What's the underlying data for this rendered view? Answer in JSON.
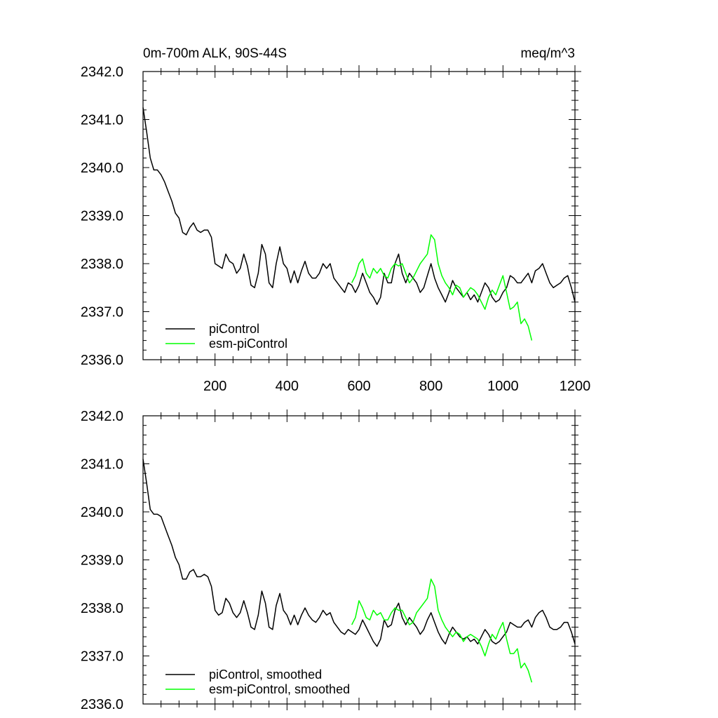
{
  "chart_data": [
    {
      "type": "line",
      "title_left": "0m-700m ALK, 90S-44S",
      "title_right": "meq/m^3",
      "xlim": [
        0,
        1200
      ],
      "ylim": [
        2336.0,
        2342.0
      ],
      "x_ticks": [
        200,
        400,
        600,
        800,
        1000,
        1200
      ],
      "x_tick_labels": [
        "200",
        "400",
        "600",
        "800",
        "1000",
        "1200"
      ],
      "y_ticks": [
        2336.0,
        2337.0,
        2338.0,
        2339.0,
        2340.0,
        2341.0,
        2342.0
      ],
      "y_tick_labels": [
        "2336.0",
        "2337.0",
        "2338.0",
        "2339.0",
        "2340.0",
        "2341.0",
        "2342.0"
      ],
      "legend_position": "bottom-left",
      "series": [
        {
          "name": "piControl",
          "color": "#000000",
          "x": [
            0,
            10,
            20,
            30,
            40,
            50,
            60,
            70,
            80,
            90,
            100,
            110,
            120,
            130,
            140,
            150,
            160,
            170,
            180,
            190,
            200,
            210,
            220,
            230,
            240,
            250,
            260,
            270,
            280,
            290,
            300,
            310,
            320,
            330,
            340,
            350,
            360,
            370,
            380,
            390,
            400,
            410,
            420,
            430,
            440,
            450,
            460,
            470,
            480,
            490,
            500,
            510,
            520,
            530,
            540,
            550,
            560,
            570,
            580,
            590,
            600,
            610,
            620,
            630,
            640,
            650,
            660,
            670,
            680,
            690,
            700,
            710,
            720,
            730,
            740,
            750,
            760,
            770,
            780,
            790,
            800,
            810,
            820,
            830,
            840,
            850,
            860,
            870,
            880,
            890,
            900,
            910,
            920,
            930,
            940,
            950,
            960,
            970,
            980,
            990,
            1000,
            1010,
            1020,
            1030,
            1040,
            1050,
            1060,
            1070,
            1080,
            1090,
            1100,
            1110,
            1120,
            1130,
            1140,
            1150,
            1160,
            1170,
            1180,
            1190,
            1200
          ],
          "y": [
            2341.25,
            2340.75,
            2340.2,
            2339.95,
            2339.95,
            2339.85,
            2339.7,
            2339.5,
            2339.3,
            2339.05,
            2338.95,
            2338.65,
            2338.6,
            2338.75,
            2338.85,
            2338.7,
            2338.65,
            2338.7,
            2338.7,
            2338.55,
            2338.0,
            2337.95,
            2337.9,
            2338.2,
            2338.05,
            2338.0,
            2337.8,
            2337.9,
            2338.2,
            2337.95,
            2337.55,
            2337.5,
            2337.8,
            2338.4,
            2338.2,
            2337.6,
            2337.5,
            2338.0,
            2338.35,
            2338.0,
            2337.9,
            2337.6,
            2337.85,
            2337.6,
            2337.85,
            2338.05,
            2337.8,
            2337.7,
            2337.7,
            2337.8,
            2338.0,
            2337.9,
            2338.0,
            2337.7,
            2337.6,
            2337.5,
            2337.4,
            2337.6,
            2337.55,
            2337.4,
            2337.55,
            2337.8,
            2337.6,
            2337.4,
            2337.3,
            2337.15,
            2337.3,
            2337.8,
            2337.6,
            2337.6,
            2338.0,
            2338.2,
            2337.8,
            2337.6,
            2337.8,
            2337.7,
            2337.6,
            2337.4,
            2337.5,
            2337.75,
            2338.0,
            2337.7,
            2337.5,
            2337.35,
            2337.2,
            2337.4,
            2337.65,
            2337.5,
            2337.4,
            2337.3,
            2337.4,
            2337.25,
            2337.35,
            2337.2,
            2337.4,
            2337.6,
            2337.5,
            2337.3,
            2337.2,
            2337.25,
            2337.4,
            2337.5,
            2337.75,
            2337.7,
            2337.6,
            2337.6,
            2337.7,
            2337.8,
            2337.6,
            2337.85,
            2337.9,
            2338.0,
            2337.8,
            2337.6,
            2337.5,
            2337.55,
            2337.6,
            2337.7,
            2337.75,
            2337.5,
            2337.2
          ]
        },
        {
          "name": "esm-piControl",
          "color": "#00ff00",
          "x": [
            580,
            590,
            600,
            610,
            620,
            630,
            640,
            650,
            660,
            670,
            680,
            690,
            700,
            710,
            720,
            730,
            740,
            750,
            760,
            770,
            780,
            790,
            800,
            810,
            820,
            830,
            840,
            850,
            860,
            870,
            880,
            890,
            900,
            910,
            920,
            930,
            940,
            950,
            960,
            970,
            980,
            990,
            1000,
            1010,
            1020,
            1030,
            1040,
            1050,
            1060,
            1070,
            1080
          ],
          "y": [
            2337.6,
            2337.75,
            2338.0,
            2338.1,
            2337.8,
            2337.7,
            2337.9,
            2337.8,
            2337.9,
            2337.75,
            2337.7,
            2337.9,
            2338.0,
            2337.95,
            2338.0,
            2337.8,
            2337.6,
            2337.7,
            2337.85,
            2338.0,
            2338.1,
            2338.2,
            2338.6,
            2338.5,
            2338.0,
            2337.75,
            2337.6,
            2337.5,
            2337.35,
            2337.55,
            2337.5,
            2337.3,
            2337.4,
            2337.5,
            2337.45,
            2337.35,
            2337.2,
            2337.05,
            2337.3,
            2337.45,
            2337.35,
            2337.55,
            2337.75,
            2337.4,
            2337.05,
            2337.1,
            2337.2,
            2336.75,
            2336.85,
            2336.7,
            2336.4
          ]
        }
      ]
    },
    {
      "type": "line",
      "xlim": [
        0,
        1200
      ],
      "ylim": [
        2336.0,
        2342.0
      ],
      "y_ticks": [
        2336.0,
        2337.0,
        2338.0,
        2339.0,
        2340.0,
        2341.0,
        2342.0
      ],
      "y_tick_labels": [
        "2336.0",
        "2337.0",
        "2338.0",
        "2339.0",
        "2340.0",
        "2341.0",
        "2342.0"
      ],
      "legend_position": "bottom-left",
      "series": [
        {
          "name": "piControl, smoothed",
          "color": "#000000",
          "x": [
            0,
            10,
            20,
            30,
            40,
            50,
            60,
            70,
            80,
            90,
            100,
            110,
            120,
            130,
            140,
            150,
            160,
            170,
            180,
            190,
            200,
            210,
            220,
            230,
            240,
            250,
            260,
            270,
            280,
            290,
            300,
            310,
            320,
            330,
            340,
            350,
            360,
            370,
            380,
            390,
            400,
            410,
            420,
            430,
            440,
            450,
            460,
            470,
            480,
            490,
            500,
            510,
            520,
            530,
            540,
            550,
            560,
            570,
            580,
            590,
            600,
            610,
            620,
            630,
            640,
            650,
            660,
            670,
            680,
            690,
            700,
            710,
            720,
            730,
            740,
            750,
            760,
            770,
            780,
            790,
            800,
            810,
            820,
            830,
            840,
            850,
            860,
            870,
            880,
            890,
            900,
            910,
            920,
            930,
            940,
            950,
            960,
            970,
            980,
            990,
            1000,
            1010,
            1020,
            1030,
            1040,
            1050,
            1060,
            1070,
            1080,
            1090,
            1100,
            1110,
            1120,
            1130,
            1140,
            1150,
            1160,
            1170,
            1180,
            1190,
            1200
          ],
          "y": [
            2341.1,
            2340.6,
            2340.05,
            2339.95,
            2339.95,
            2339.9,
            2339.7,
            2339.5,
            2339.3,
            2339.05,
            2338.9,
            2338.6,
            2338.6,
            2338.75,
            2338.8,
            2338.65,
            2338.65,
            2338.7,
            2338.65,
            2338.45,
            2337.95,
            2337.85,
            2337.9,
            2338.2,
            2338.1,
            2337.9,
            2337.8,
            2337.9,
            2338.15,
            2337.9,
            2337.6,
            2337.55,
            2337.85,
            2338.35,
            2338.1,
            2337.6,
            2337.55,
            2338.05,
            2338.3,
            2337.95,
            2337.85,
            2337.65,
            2337.85,
            2337.65,
            2337.85,
            2338.0,
            2337.85,
            2337.75,
            2337.7,
            2337.8,
            2337.95,
            2337.85,
            2337.9,
            2337.7,
            2337.6,
            2337.5,
            2337.45,
            2337.55,
            2337.5,
            2337.45,
            2337.55,
            2337.75,
            2337.6,
            2337.45,
            2337.3,
            2337.2,
            2337.35,
            2337.75,
            2337.6,
            2337.65,
            2337.95,
            2338.1,
            2337.8,
            2337.65,
            2337.8,
            2337.7,
            2337.6,
            2337.45,
            2337.55,
            2337.75,
            2337.9,
            2337.7,
            2337.5,
            2337.35,
            2337.25,
            2337.45,
            2337.6,
            2337.5,
            2337.4,
            2337.35,
            2337.4,
            2337.3,
            2337.35,
            2337.25,
            2337.4,
            2337.55,
            2337.45,
            2337.3,
            2337.25,
            2337.3,
            2337.4,
            2337.5,
            2337.7,
            2337.65,
            2337.6,
            2337.6,
            2337.7,
            2337.75,
            2337.6,
            2337.8,
            2337.9,
            2337.95,
            2337.8,
            2337.6,
            2337.55,
            2337.55,
            2337.6,
            2337.7,
            2337.7,
            2337.5,
            2337.25
          ]
        },
        {
          "name": "esm-piControl, smoothed",
          "color": "#00ff00",
          "x": [
            580,
            590,
            600,
            610,
            620,
            630,
            640,
            650,
            660,
            670,
            680,
            690,
            700,
            710,
            720,
            730,
            740,
            750,
            760,
            770,
            780,
            790,
            800,
            810,
            820,
            830,
            840,
            850,
            860,
            870,
            880,
            890,
            900,
            910,
            920,
            930,
            940,
            950,
            960,
            970,
            980,
            990,
            1000,
            1010,
            1020,
            1030,
            1040,
            1050,
            1060,
            1070,
            1080
          ],
          "y": [
            2337.65,
            2337.8,
            2338.15,
            2338.0,
            2337.8,
            2337.75,
            2337.95,
            2337.85,
            2337.9,
            2337.75,
            2337.75,
            2337.9,
            2338.0,
            2337.95,
            2337.95,
            2337.8,
            2337.65,
            2337.7,
            2337.9,
            2338.0,
            2338.1,
            2338.2,
            2338.6,
            2338.45,
            2337.95,
            2337.75,
            2337.6,
            2337.5,
            2337.4,
            2337.5,
            2337.45,
            2337.3,
            2337.4,
            2337.45,
            2337.4,
            2337.35,
            2337.2,
            2337.0,
            2337.25,
            2337.45,
            2337.35,
            2337.55,
            2337.7,
            2337.35,
            2337.05,
            2337.05,
            2337.15,
            2336.75,
            2336.85,
            2336.7,
            2336.45
          ]
        }
      ]
    }
  ]
}
